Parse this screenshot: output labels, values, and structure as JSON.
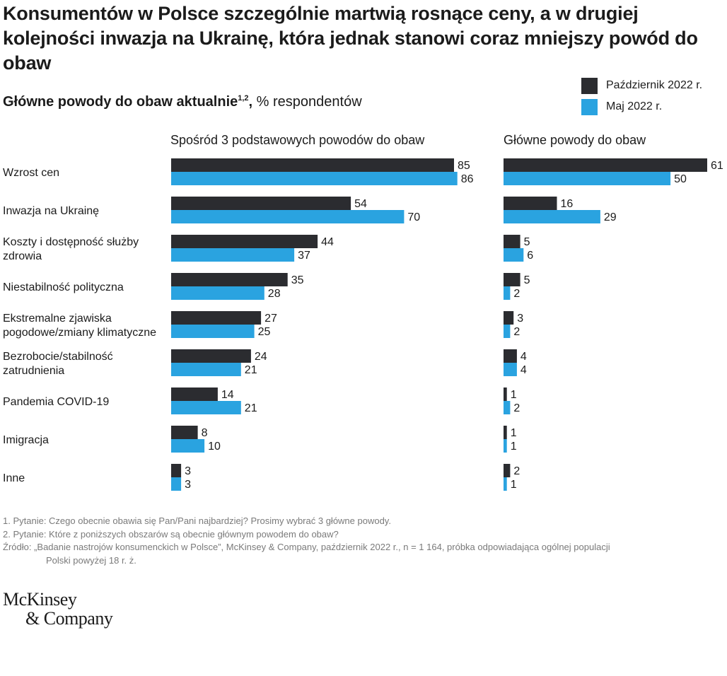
{
  "title": "Konsumentów w Polsce szczególnie martwią rosnące ceny, a w drugiej kolejności inwazja na Ukrainę, która jednak stanowi coraz mniejszy powód do obaw",
  "subtitle": {
    "bold": "Główne powody do obaw aktualnie",
    "superscript": "1,2",
    "comma": ",",
    "rest": " % respondentów"
  },
  "legend": [
    {
      "label": "Październik 2022 r.",
      "color": "#2b2c30"
    },
    {
      "label": "Maj 2022 r.",
      "color": "#2aa3e0"
    }
  ],
  "chart_data": [
    {
      "type": "bar",
      "orientation": "horizontal",
      "title": "Spośród 3 podstawowych powodów do obaw",
      "categories": [
        [
          "Wzrost cen"
        ],
        [
          "Inwazja na Ukrainę"
        ],
        [
          "Koszty i dostępność służby",
          "zdrowia"
        ],
        [
          "Niestabilność polityczna"
        ],
        [
          "Ekstremalne zjawiska",
          "pogodowe/zmiany klimatyczne"
        ],
        [
          "Bezrobocie/stabilność",
          "zatrudnienia"
        ],
        [
          "Pandemia COVID-19"
        ],
        [
          "Imigracja"
        ],
        [
          "Inne"
        ]
      ],
      "series": [
        {
          "name": "Październik 2022 r.",
          "color": "#2b2c30",
          "values": [
            85,
            54,
            44,
            35,
            27,
            24,
            14,
            8,
            3
          ]
        },
        {
          "name": "Maj 2022 r.",
          "color": "#2aa3e0",
          "values": [
            86,
            70,
            37,
            28,
            25,
            21,
            21,
            10,
            3
          ]
        }
      ],
      "xlim": [
        0,
        100
      ]
    },
    {
      "type": "bar",
      "orientation": "horizontal",
      "title": "Główne powody do obaw",
      "series": [
        {
          "name": "Październik 2022 r.",
          "color": "#2b2c30",
          "values": [
            61,
            16,
            5,
            5,
            3,
            4,
            1,
            1,
            2
          ]
        },
        {
          "name": "Maj 2022 r.",
          "color": "#2aa3e0",
          "values": [
            50,
            29,
            6,
            2,
            2,
            4,
            2,
            1,
            1
          ]
        }
      ],
      "xlim": [
        0,
        61
      ]
    }
  ],
  "footnotes": [
    "1. Pytanie: Czego obecnie obawia się Pan/Pani najbardziej? Prosimy wybrać 3 główne powody.",
    "2. Pytanie: Które z poniższych obszarów są obecnie głównym powodem do obaw?",
    "Źródło: „Badanie nastrojów konsumenckich w Polsce”, McKinsey & Company, październik 2022 r., n = 1 164, próbka odpowiadająca ogólnej populacji",
    "Polski powyżej 18 r. ż."
  ],
  "logo": {
    "line1": "McKinsey",
    "line2": "& Company"
  }
}
